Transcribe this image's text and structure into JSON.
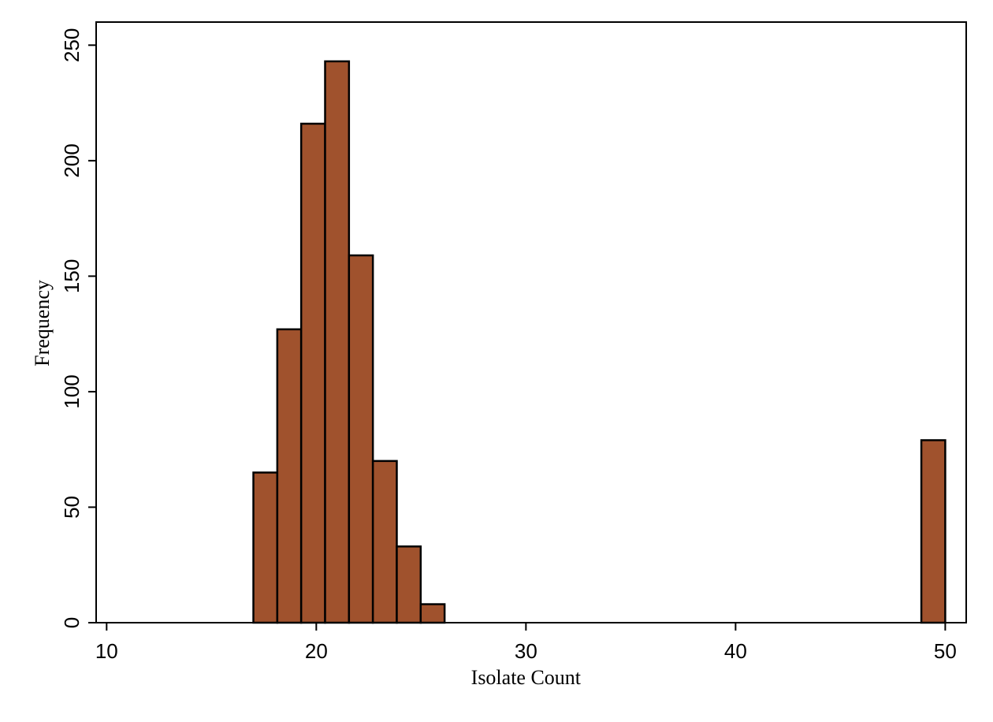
{
  "chart_data": {
    "type": "bar",
    "title": "",
    "xlabel": "Isolate Count",
    "ylabel": "Frequency",
    "xlim": [
      9.5,
      51
    ],
    "ylim": [
      0,
      260
    ],
    "xticks": [
      10,
      20,
      30,
      40,
      50
    ],
    "yticks": [
      0,
      50,
      100,
      150,
      200,
      250
    ],
    "grid": false,
    "legend": "none",
    "bar_color": "#A0522D",
    "bins": [
      {
        "x0": 17.0,
        "x1": 18.14,
        "value": 65
      },
      {
        "x0": 18.14,
        "x1": 19.28,
        "value": 127
      },
      {
        "x0": 19.28,
        "x1": 20.42,
        "value": 216
      },
      {
        "x0": 20.42,
        "x1": 21.56,
        "value": 243
      },
      {
        "x0": 21.56,
        "x1": 22.7,
        "value": 159
      },
      {
        "x0": 22.7,
        "x1": 23.84,
        "value": 70
      },
      {
        "x0": 23.84,
        "x1": 24.98,
        "value": 33
      },
      {
        "x0": 24.98,
        "x1": 26.12,
        "value": 8
      },
      {
        "x0": 48.86,
        "x1": 50.0,
        "value": 79
      }
    ]
  }
}
